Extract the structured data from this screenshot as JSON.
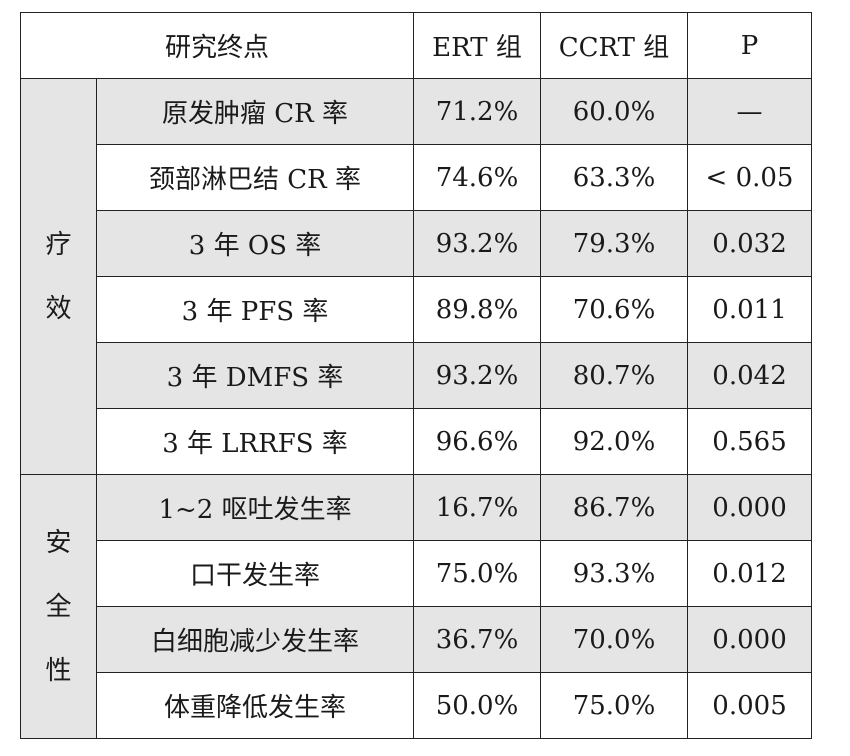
{
  "table": {
    "headers": {
      "endpoint": "研究终点",
      "ert": "ERT 组",
      "ccrt": "CCRT 组",
      "p": "P"
    },
    "groups": [
      {
        "label_chars": [
          "疗",
          "效"
        ],
        "rows": [
          {
            "endpoint": "原发肿瘤 CR 率",
            "ert": "71.2%",
            "ccrt": "60.0%",
            "p": "—"
          },
          {
            "endpoint": "颈部淋巴结 CR 率",
            "ert": "74.6%",
            "ccrt": "63.3%",
            "p": "< 0.05"
          },
          {
            "endpoint": "3 年 OS 率",
            "ert": "93.2%",
            "ccrt": "79.3%",
            "p": "0.032"
          },
          {
            "endpoint": "3 年 PFS 率",
            "ert": "89.8%",
            "ccrt": "70.6%",
            "p": "0.011"
          },
          {
            "endpoint": "3 年 DMFS 率",
            "ert": "93.2%",
            "ccrt": "80.7%",
            "p": "0.042"
          },
          {
            "endpoint": "3 年 LRRFS 率",
            "ert": "96.6%",
            "ccrt": "92.0%",
            "p": "0.565"
          }
        ]
      },
      {
        "label_chars": [
          "安",
          "全",
          "性"
        ],
        "rows": [
          {
            "endpoint": "1~2 呕吐发生率",
            "ert": "16.7%",
            "ccrt": "86.7%",
            "p": "0.000"
          },
          {
            "endpoint": "口干发生率",
            "ert": "75.0%",
            "ccrt": "93.3%",
            "p": "0.012"
          },
          {
            "endpoint": "白细胞减少发生率",
            "ert": "36.7%",
            "ccrt": "70.0%",
            "p": "0.000"
          },
          {
            "endpoint": "体重降低发生率",
            "ert": "50.0%",
            "ccrt": "75.0%",
            "p": "0.005"
          }
        ]
      }
    ]
  }
}
